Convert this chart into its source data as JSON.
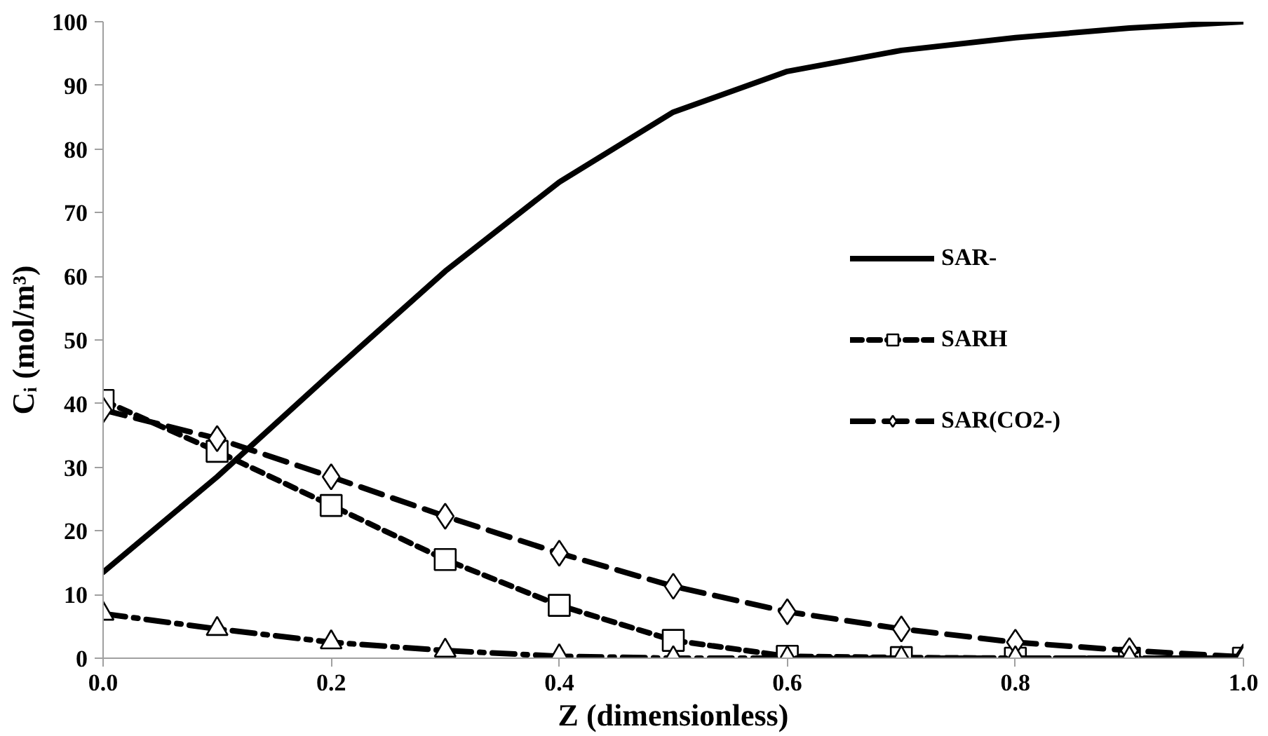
{
  "chart_data": {
    "type": "line",
    "xlabel": "Z (dimensionless)",
    "ylabel": "Cᵢ (mol/m³)",
    "x": [
      0.0,
      0.1,
      0.2,
      0.3,
      0.4,
      0.5,
      0.6,
      0.7,
      0.8,
      0.9,
      1.0
    ],
    "series": [
      {
        "name": "SAR-",
        "color": "#000000",
        "marker": "none",
        "line_style": "solid",
        "values": [
          13.5,
          28.5,
          44.8,
          60.8,
          74.8,
          85.8,
          92.2,
          95.5,
          97.5,
          99.0,
          100.0
        ]
      },
      {
        "name": "SARH",
        "color": "#000000",
        "marker": "square",
        "line_style": "dashed",
        "values": [
          40.5,
          32.5,
          24.0,
          15.5,
          8.3,
          2.8,
          0.3,
          0.1,
          0.0,
          0.0,
          0.0
        ]
      },
      {
        "name": "SAR(CO2-)",
        "color": "#000000",
        "marker": "diamond",
        "line_style": "longdash",
        "values": [
          39.0,
          34.5,
          28.5,
          22.3,
          16.5,
          11.3,
          7.3,
          4.6,
          2.5,
          1.2,
          0.2
        ]
      },
      {
        "color": "#000000",
        "marker": "triangle",
        "line_style": "dashdot",
        "values": [
          7.0,
          4.6,
          2.5,
          1.2,
          0.3,
          0.0,
          0.0,
          0.0,
          0.0,
          0.0,
          0.0
        ]
      }
    ],
    "xlim": [
      0.0,
      1.0
    ],
    "ylim": [
      0,
      100
    ],
    "xticks": [
      {
        "value": 0.0,
        "label": "0.0"
      },
      {
        "value": 0.2,
        "label": "0.2"
      },
      {
        "value": 0.4,
        "label": "0.4"
      },
      {
        "value": 0.6,
        "label": "0.6"
      },
      {
        "value": 0.8,
        "label": "0.8"
      },
      {
        "value": 1.0,
        "label": "1.0"
      }
    ],
    "yticks": [
      0,
      10,
      20,
      30,
      40,
      50,
      60,
      70,
      80,
      90,
      100
    ],
    "grid": false,
    "legend": "right"
  }
}
